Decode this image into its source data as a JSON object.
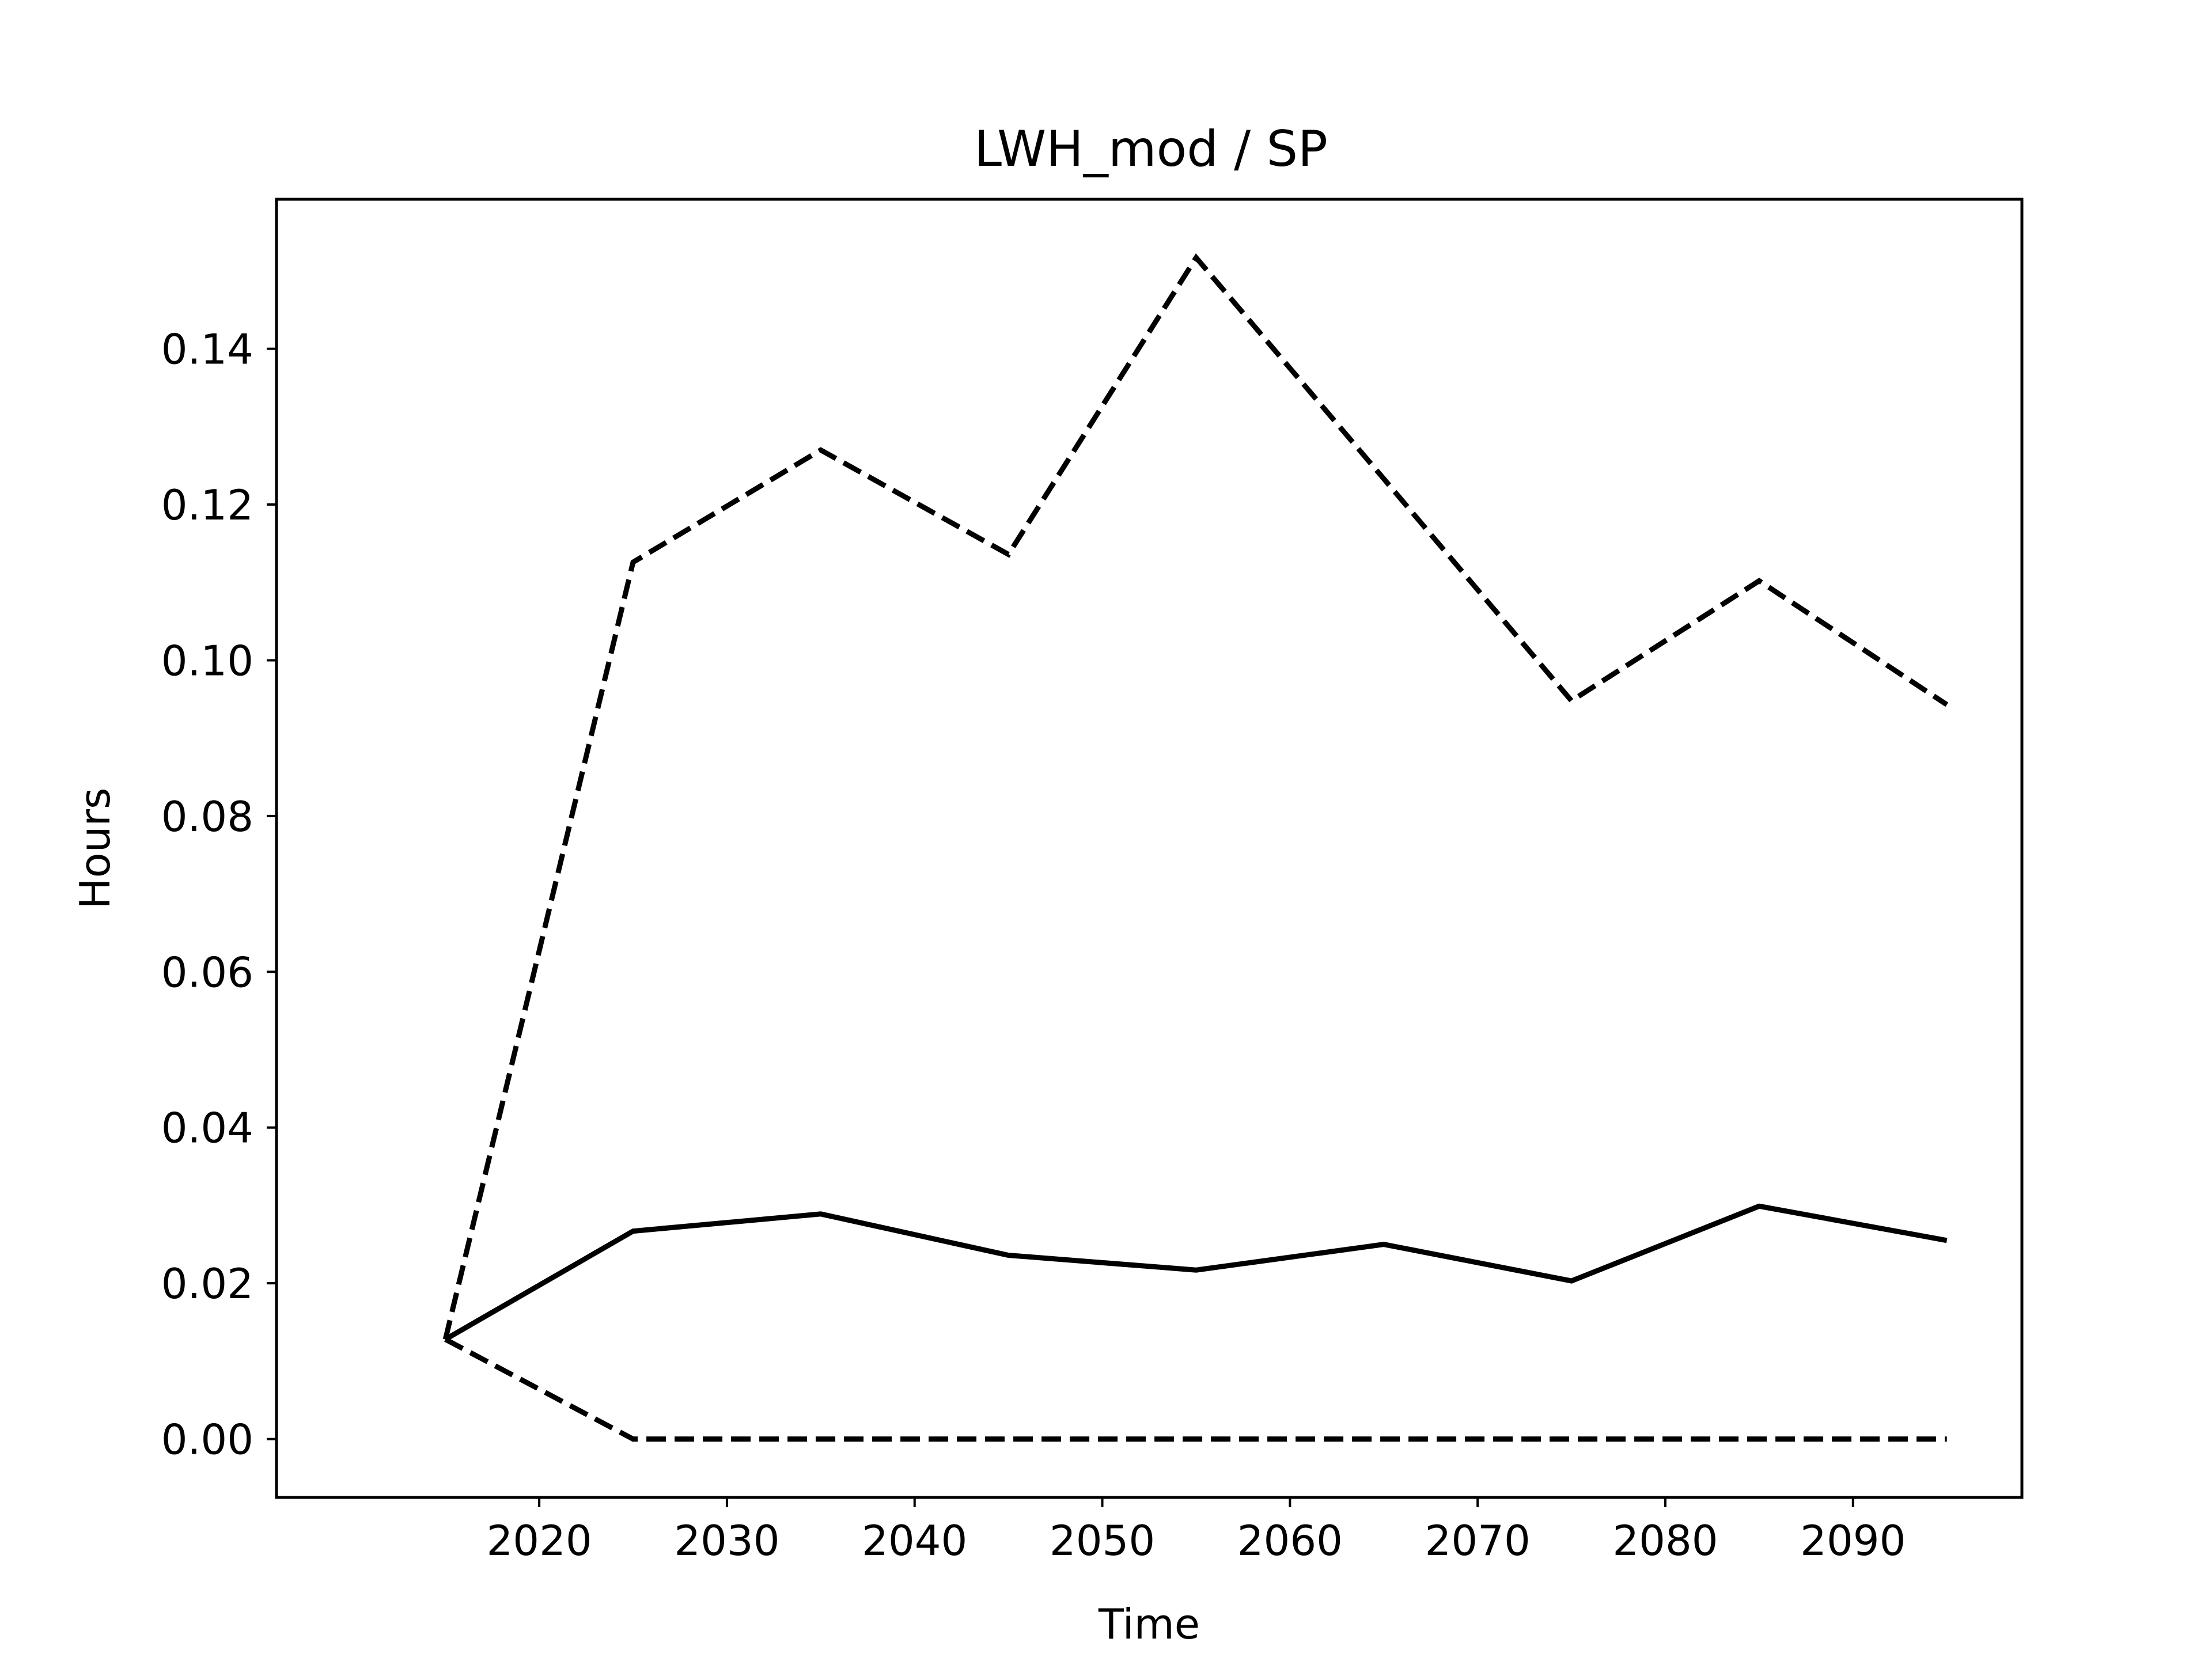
{
  "chart_data": {
    "type": "line",
    "title": "LWH_mod / SP",
    "xlabel": "Time",
    "ylabel": "Hours",
    "x": [
      2015,
      2025,
      2035,
      2045,
      2055,
      2065,
      2075,
      2085,
      2095
    ],
    "series": [
      {
        "style": "solid",
        "values": [
          0.0128,
          0.0267,
          0.0289,
          0.0236,
          0.0217,
          0.025,
          0.0203,
          0.0299,
          0.0255
        ]
      },
      {
        "style": "dashed",
        "values": [
          0.0128,
          0.1126,
          0.127,
          0.1136,
          0.1517,
          0.1233,
          0.0948,
          0.1102,
          0.0943
        ]
      },
      {
        "style": "dashed",
        "values": [
          0.0128,
          0.0,
          0.0,
          0.0,
          0.0,
          0.0,
          0.0,
          0.0,
          0.0
        ]
      }
    ],
    "xlim": [
      2006,
      2099
    ],
    "ylim": [
      -0.0075,
      0.1592
    ],
    "xticks": [
      2020,
      2030,
      2040,
      2050,
      2060,
      2070,
      2080,
      2090
    ],
    "yticks": [
      0.0,
      0.02,
      0.04,
      0.06,
      0.08,
      0.1,
      0.12,
      0.14
    ],
    "ytick_labels": [
      "0.00",
      "0.02",
      "0.04",
      "0.06",
      "0.08",
      "0.10",
      "0.12",
      "0.14"
    ],
    "grid": false,
    "line_color": "#000000"
  }
}
